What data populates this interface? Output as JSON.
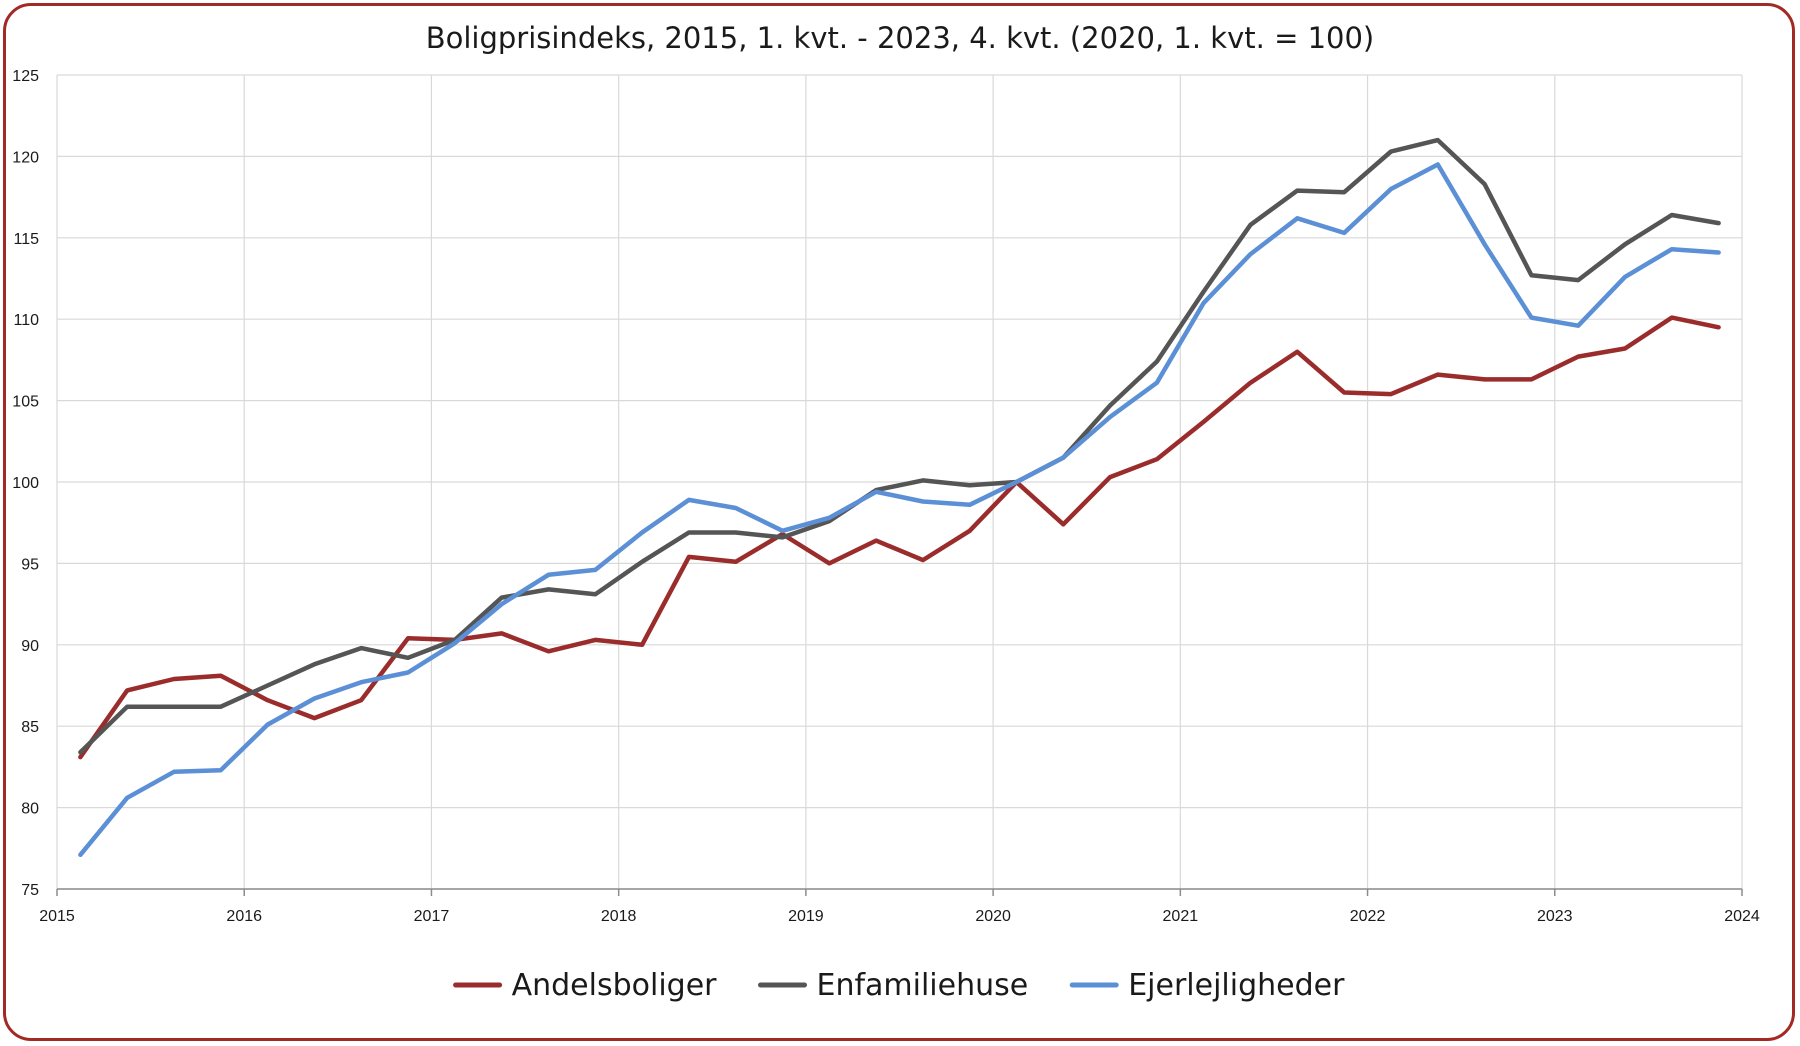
{
  "chart_data": {
    "type": "line",
    "title": "Boligprisindeks, 2015, 1. kvt. - 2023, 4. kvt. (2020, 1. kvt. = 100)",
    "xlabel": "",
    "ylabel": "",
    "xlim": [
      2015,
      2024
    ],
    "ylim": [
      75,
      125
    ],
    "x_ticks": [
      "2015",
      "2016",
      "2017",
      "2018",
      "2019",
      "2020",
      "2021",
      "2022",
      "2023",
      "2024"
    ],
    "y_ticks": [
      "75",
      "80",
      "85",
      "90",
      "95",
      "100",
      "105",
      "110",
      "115",
      "120",
      "125"
    ],
    "grid": true,
    "legend_position": "bottom",
    "x": [
      2015.125,
      2015.375,
      2015.625,
      2015.875,
      2016.125,
      2016.375,
      2016.625,
      2016.875,
      2017.125,
      2017.375,
      2017.625,
      2017.875,
      2018.125,
      2018.375,
      2018.625,
      2018.875,
      2019.125,
      2019.375,
      2019.625,
      2019.875,
      2020.125,
      2020.375,
      2020.625,
      2020.875,
      2021.125,
      2021.375,
      2021.625,
      2021.875,
      2022.125,
      2022.375,
      2022.625,
      2022.875,
      2023.125,
      2023.375,
      2023.625,
      2023.875
    ],
    "series": [
      {
        "name": "Andelsboliger",
        "color": "#9b2c2c",
        "values": [
          83.1,
          87.2,
          87.9,
          88.1,
          86.6,
          85.5,
          86.6,
          90.4,
          90.3,
          90.7,
          89.6,
          90.3,
          90.0,
          95.4,
          95.1,
          96.8,
          95.0,
          96.4,
          95.2,
          97.0,
          100.0,
          97.4,
          100.3,
          101.4,
          103.7,
          106.1,
          108.0,
          105.5,
          105.4,
          106.6,
          106.3,
          106.3,
          107.7,
          108.2,
          110.1,
          109.5
        ]
      },
      {
        "name": "Enfamiliehuse",
        "color": "#555555",
        "values": [
          83.4,
          86.2,
          86.2,
          86.2,
          87.5,
          88.8,
          89.8,
          89.2,
          90.3,
          92.9,
          93.4,
          93.1,
          95.1,
          96.9,
          96.9,
          96.6,
          97.6,
          99.5,
          100.1,
          99.8,
          100.0,
          101.5,
          104.7,
          107.4,
          111.7,
          115.8,
          117.9,
          117.8,
          120.3,
          121.0,
          118.3,
          112.7,
          112.4,
          114.6,
          116.4,
          115.9
        ]
      },
      {
        "name": "Ejerlejligheder",
        "color": "#5b8fd6",
        "values": [
          77.1,
          80.6,
          82.2,
          82.3,
          85.1,
          86.7,
          87.7,
          88.3,
          90.1,
          92.5,
          94.3,
          94.6,
          96.9,
          98.9,
          98.4,
          97.0,
          97.8,
          99.4,
          98.8,
          98.6,
          100.0,
          101.5,
          104.0,
          106.1,
          111.0,
          114.0,
          116.2,
          115.3,
          118.0,
          119.5,
          114.6,
          110.1,
          109.6,
          112.6,
          114.3,
          114.1
        ]
      }
    ]
  }
}
